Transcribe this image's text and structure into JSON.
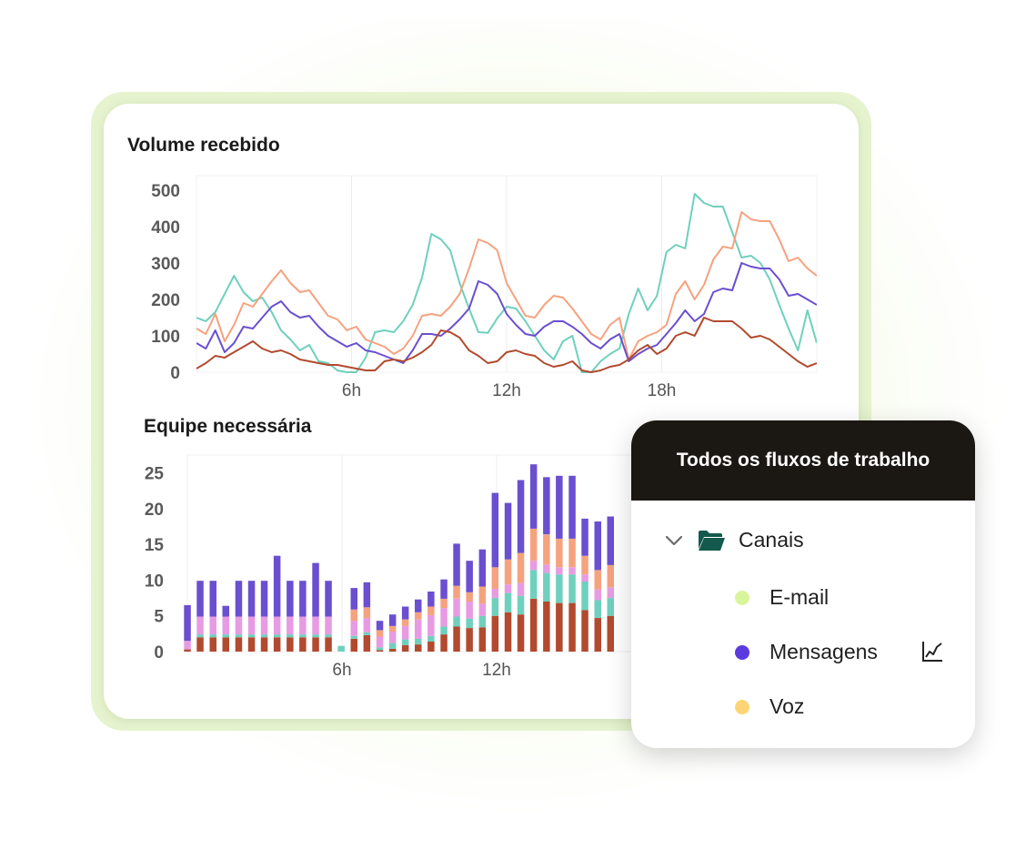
{
  "colors": {
    "teal": "#6fd0bd",
    "salmon": "#f5a27f",
    "purple": "#6a4fd0",
    "rust": "#b24a2f",
    "pink": "#e79be3",
    "green_dot": "#d9f59c",
    "purple_dot": "#5b3be0",
    "yellow_dot": "#fdd577",
    "folder": "#145a4c",
    "header_bg": "#1b1712"
  },
  "chart_data": [
    {
      "type": "line",
      "title": "Volume recebido",
      "xlabel": "",
      "ylabel": "",
      "ylim": [
        0,
        540
      ],
      "x_range": [
        0,
        24
      ],
      "x_ticks": [
        {
          "value": 6,
          "label": "6h"
        },
        {
          "value": 12,
          "label": "12h"
        },
        {
          "value": 18,
          "label": "18h"
        }
      ],
      "y_ticks": [
        0,
        100,
        200,
        300,
        400,
        500
      ],
      "grid": "vertical",
      "series": [
        {
          "color": "teal",
          "values": [
            150,
            140,
            165,
            215,
            265,
            220,
            195,
            205,
            165,
            115,
            90,
            60,
            75,
            30,
            25,
            5,
            0,
            0,
            40,
            110,
            115,
            110,
            140,
            185,
            260,
            380,
            365,
            335,
            245,
            175,
            110,
            108,
            148,
            180,
            175,
            140,
            100,
            60,
            35,
            85,
            100,
            0,
            0,
            30,
            50,
            65,
            160,
            230,
            170,
            210,
            330,
            350,
            340,
            490,
            465,
            455,
            455,
            385,
            315,
            320,
            300,
            255,
            185,
            120,
            60,
            170,
            80
          ]
        },
        {
          "color": "salmon",
          "values": [
            120,
            105,
            160,
            85,
            130,
            190,
            180,
            215,
            250,
            280,
            245,
            220,
            225,
            190,
            155,
            145,
            115,
            125,
            90,
            80,
            70,
            50,
            65,
            100,
            155,
            160,
            155,
            180,
            215,
            285,
            365,
            355,
            335,
            245,
            200,
            155,
            150,
            185,
            210,
            205,
            175,
            140,
            105,
            90,
            130,
            150,
            35,
            85,
            100,
            110,
            130,
            215,
            250,
            200,
            240,
            310,
            345,
            340,
            440,
            420,
            415,
            415,
            365,
            305,
            315,
            285,
            265
          ]
        },
        {
          "color": "purple",
          "values": [
            80,
            65,
            115,
            55,
            80,
            125,
            120,
            150,
            180,
            195,
            165,
            150,
            155,
            125,
            100,
            85,
            70,
            80,
            60,
            55,
            45,
            35,
            25,
            60,
            105,
            105,
            100,
            120,
            145,
            175,
            250,
            240,
            215,
            160,
            130,
            105,
            100,
            125,
            140,
            140,
            125,
            105,
            80,
            65,
            90,
            105,
            30,
            50,
            65,
            75,
            105,
            135,
            170,
            140,
            160,
            220,
            230,
            225,
            300,
            290,
            285,
            285,
            255,
            210,
            215,
            200,
            185
          ]
        },
        {
          "color": "rust",
          "values": [
            10,
            25,
            45,
            40,
            55,
            70,
            85,
            65,
            55,
            60,
            50,
            35,
            30,
            25,
            20,
            20,
            15,
            10,
            5,
            5,
            30,
            35,
            30,
            40,
            55,
            75,
            115,
            110,
            95,
            60,
            45,
            25,
            30,
            55,
            60,
            50,
            45,
            25,
            15,
            20,
            30,
            5,
            0,
            5,
            15,
            20,
            35,
            60,
            75,
            50,
            65,
            100,
            110,
            100,
            150,
            140,
            140,
            140,
            120,
            95,
            100,
            90,
            70,
            50,
            30,
            15,
            25
          ]
        }
      ]
    },
    {
      "type": "bar",
      "title": "Equipe necessária",
      "xlabel": "",
      "ylabel": "",
      "ylim": [
        0,
        27.5
      ],
      "x_range": [
        0,
        24
      ],
      "x_ticks": [
        {
          "value": 6,
          "label": "6h"
        },
        {
          "value": 12,
          "label": "12h"
        }
      ],
      "y_ticks": [
        0,
        5,
        10,
        15,
        20,
        25
      ],
      "grid": "vertical",
      "stack_order": [
        "rust",
        "teal",
        "pink",
        "salmon",
        "purple"
      ],
      "bars": [
        [
          0.3,
          0,
          1.2,
          0,
          5
        ],
        [
          2,
          0.4,
          2.5,
          0,
          5
        ],
        [
          2,
          0.4,
          2.5,
          0,
          5
        ],
        [
          2,
          0.4,
          2.5,
          0,
          1.5
        ],
        [
          2,
          0.4,
          2.5,
          0,
          5
        ],
        [
          2,
          0.4,
          2.5,
          0,
          5
        ],
        [
          2,
          0.4,
          2.5,
          0,
          5
        ],
        [
          2,
          0.4,
          2.5,
          0,
          8.5
        ],
        [
          2,
          0.4,
          2.5,
          0,
          5
        ],
        [
          2,
          0.4,
          2.5,
          0,
          5
        ],
        [
          2,
          0.4,
          2.5,
          0,
          7.5
        ],
        [
          2,
          0.4,
          2.5,
          0,
          5
        ],
        [
          0,
          0.8,
          0,
          0,
          0
        ],
        [
          1.8,
          0.4,
          2.1,
          1.6,
          3
        ],
        [
          2.3,
          0.4,
          2,
          1.5,
          3.5
        ],
        [
          0.2,
          0.4,
          1.5,
          0.9,
          1.3
        ],
        [
          0.4,
          0.8,
          1.6,
          0.8,
          1.6
        ],
        [
          0.9,
          0.8,
          1.9,
          0.9,
          1.8
        ],
        [
          1,
          0.8,
          2.7,
          1,
          1.8
        ],
        [
          1.4,
          0.8,
          2.9,
          1.2,
          2.1
        ],
        [
          2.4,
          1.1,
          2.6,
          1.3,
          2.7
        ],
        [
          3.5,
          1.4,
          2.5,
          1.8,
          5.9
        ],
        [
          3.3,
          1.3,
          2.4,
          1.3,
          4.4
        ],
        [
          3.4,
          1.6,
          1.7,
          2.4,
          5.2
        ],
        [
          5,
          2.5,
          1.3,
          3,
          10.4
        ],
        [
          5.5,
          2.7,
          1.2,
          3.5,
          7.9
        ],
        [
          5.2,
          2.6,
          1.8,
          4.2,
          10.2
        ],
        [
          7.4,
          4,
          1.3,
          4.5,
          9
        ],
        [
          7,
          4,
          1.2,
          4.2,
          8
        ],
        [
          6.8,
          4,
          1,
          4,
          8.8
        ],
        [
          6.8,
          4,
          1,
          4,
          8.8
        ],
        [
          5.8,
          4,
          1,
          2.6,
          5.2
        ],
        [
          4.7,
          2.5,
          1.5,
          2.7,
          6.8
        ],
        [
          5,
          2.5,
          1.5,
          3.1,
          6.8
        ]
      ]
    }
  ],
  "popup": {
    "title": "Todos os fluxos de trabalho",
    "folder": {
      "label": "Canais",
      "expand_icon": "chevron-down-icon",
      "icon": "folder-icon"
    },
    "items": [
      {
        "label": "E-mail",
        "color": "green_dot"
      },
      {
        "label": "Mensagens",
        "color": "purple_dot",
        "action_icon": "trend-chart-icon"
      },
      {
        "label": "Voz",
        "color": "yellow_dot"
      }
    ]
  }
}
